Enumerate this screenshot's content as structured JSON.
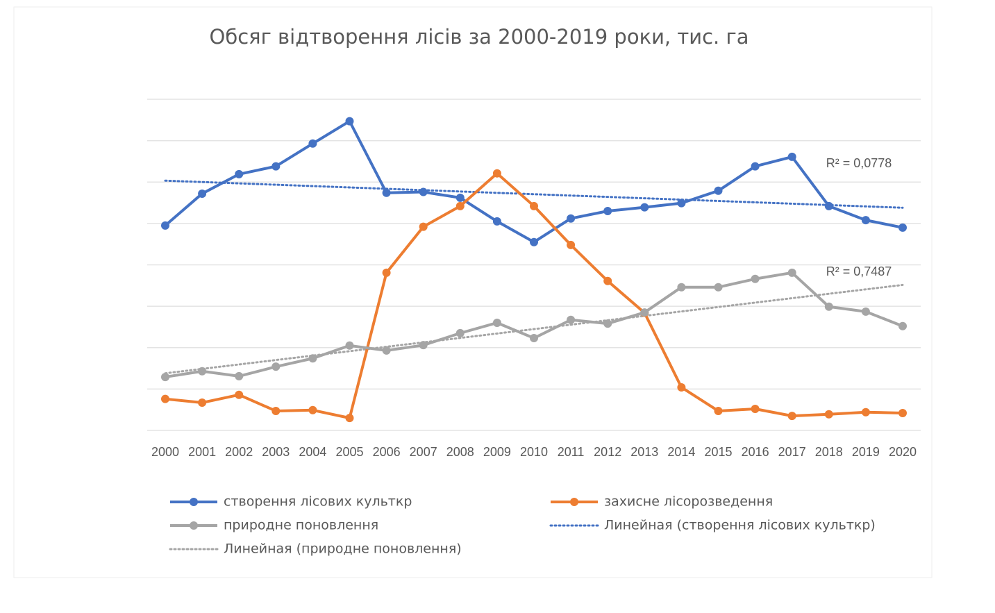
{
  "chart_data": {
    "type": "line",
    "title": "Обсяг відтворення лісів за 2000-2019 роки, тис. га",
    "categories": [
      "2000",
      "2001",
      "2002",
      "2003",
      "2004",
      "2005",
      "2006",
      "2007",
      "2008",
      "2009",
      "2010",
      "2011",
      "2012",
      "2013",
      "2014",
      "2015",
      "2016",
      "2017",
      "2018",
      "2019",
      "2020"
    ],
    "ylim": [
      0,
      8
    ],
    "yticks": [
      0,
      1,
      2,
      3,
      4,
      5,
      6,
      7,
      8
    ],
    "grid": true,
    "series": [
      {
        "name": "створення лісових культкр",
        "color": "#4472c4",
        "values": [
          4.95,
          5.72,
          6.19,
          6.38,
          6.93,
          7.47,
          5.74,
          5.76,
          5.62,
          5.05,
          4.55,
          5.12,
          5.3,
          5.39,
          5.49,
          5.79,
          6.38,
          6.61,
          5.42,
          5.08,
          4.9
        ],
        "trendline": {
          "name": "Линейная (створення лісових культкр)",
          "r2_label": "R² = 0,0778"
        }
      },
      {
        "name": "захисне лісорозведення",
        "color": "#ed7d31",
        "values": [
          0.76,
          0.67,
          0.86,
          0.47,
          0.49,
          0.3,
          3.81,
          4.92,
          5.42,
          6.21,
          5.42,
          4.48,
          3.61,
          2.84,
          1.04,
          0.47,
          0.52,
          0.35,
          0.39,
          0.44,
          0.42
        ]
      },
      {
        "name": "природне поновлення",
        "color": "#a5a5a5",
        "values": [
          1.29,
          1.43,
          1.31,
          1.54,
          1.74,
          2.05,
          1.93,
          2.06,
          2.35,
          2.6,
          2.23,
          2.67,
          2.58,
          2.85,
          3.46,
          3.46,
          3.66,
          3.81,
          2.99,
          2.87,
          2.52
        ],
        "trendline": {
          "name": "Линейная (природне поновлення)",
          "r2_label": "R² = 0,7487"
        }
      }
    ]
  }
}
